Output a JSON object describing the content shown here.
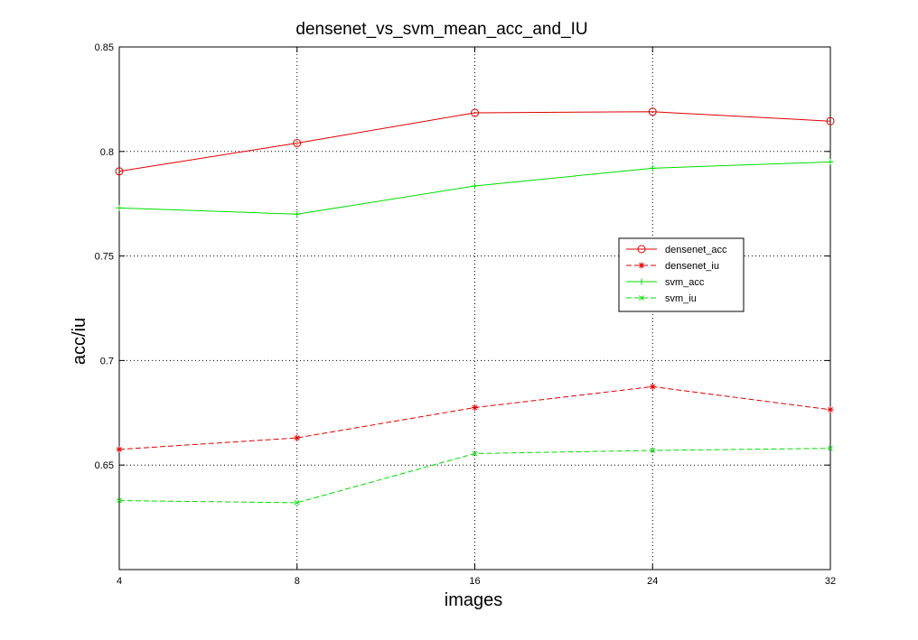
{
  "chart_data": {
    "type": "line",
    "title": "densenet_vs_svm_mean_acc_and_IU",
    "xlabel": "images",
    "ylabel": "acc/iu",
    "categories": [
      "4",
      "8",
      "16",
      "24",
      "32"
    ],
    "ylim": [
      0.6,
      0.85
    ],
    "yticks": [
      "0.65",
      "0.7",
      "0.75",
      "0.8",
      "0.85"
    ],
    "grid": true,
    "legend_position": "center-right",
    "series": [
      {
        "name": "densenet_acc",
        "values": [
          0.7905,
          0.804,
          0.8185,
          0.819,
          0.8145
        ],
        "color": "#dd0000",
        "dash": "solid",
        "marker": "circle"
      },
      {
        "name": "densenet_iu",
        "values": [
          0.6575,
          0.663,
          0.6775,
          0.6875,
          0.6765
        ],
        "color": "#dd0000",
        "dash": "dashed",
        "marker": "asterisk"
      },
      {
        "name": "svm_acc",
        "values": [
          0.773,
          0.77,
          0.7835,
          0.792,
          0.795
        ],
        "color": "#00dd00",
        "dash": "solid",
        "marker": "plus"
      },
      {
        "name": "svm_iu",
        "values": [
          0.633,
          0.632,
          0.6555,
          0.657,
          0.658
        ],
        "color": "#00dd00",
        "dash": "dashed",
        "marker": "x"
      }
    ]
  }
}
